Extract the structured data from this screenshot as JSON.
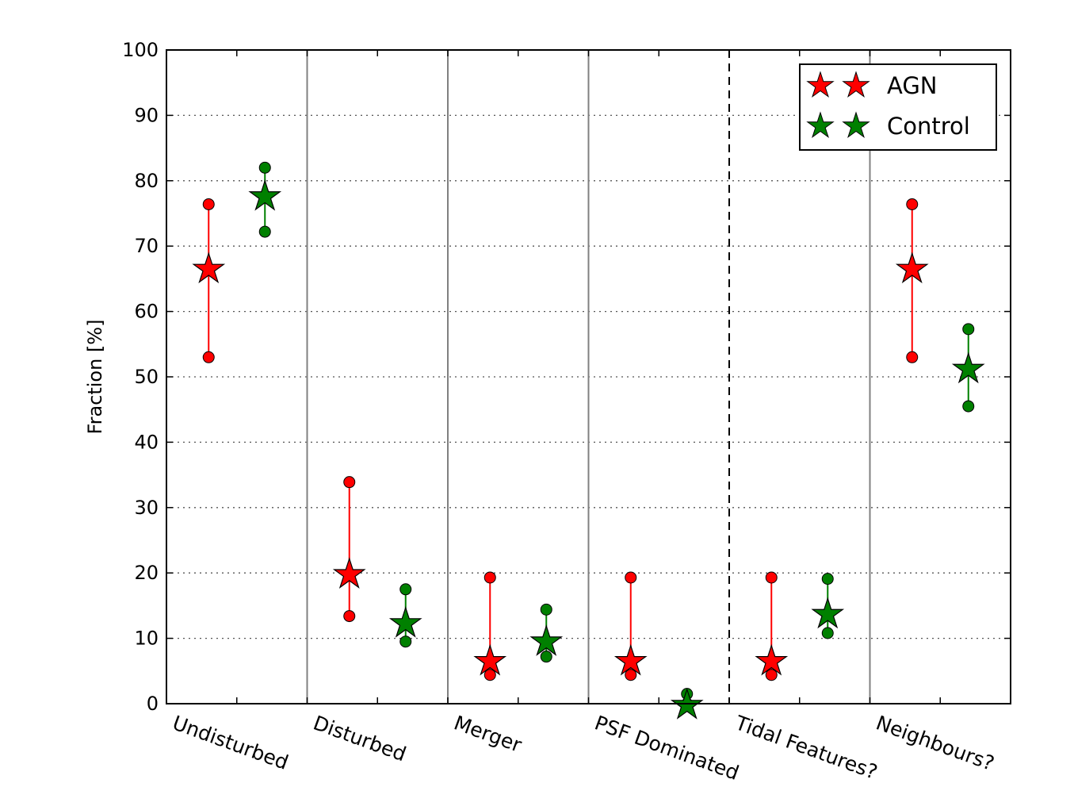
{
  "chart_data": {
    "type": "scatter",
    "title": "",
    "xlabel": "",
    "ylabel": "Fraction [%]",
    "ylim": [
      0,
      100
    ],
    "yticks": [
      0,
      10,
      20,
      30,
      40,
      50,
      60,
      70,
      80,
      90,
      100
    ],
    "grid": "horizontal dotted",
    "legend_position": "top-right",
    "categories": [
      "Undisturbed",
      "Disturbed",
      "Merger",
      "PSF Dominated",
      "Tidal Features?",
      "Neighbours?"
    ],
    "series": [
      {
        "name": "AGN",
        "color": "#ff0000",
        "values": [
          66.7,
          20.0,
          6.7,
          6.7,
          6.7,
          66.7
        ],
        "lower": [
          53.0,
          13.4,
          4.4,
          4.4,
          4.4,
          53.0
        ],
        "upper": [
          76.4,
          33.9,
          19.3,
          19.3,
          19.3,
          76.4
        ]
      },
      {
        "name": "Control",
        "color": "#008000",
        "values": [
          77.8,
          12.5,
          9.7,
          0.0,
          13.9,
          51.4
        ],
        "lower": [
          72.2,
          9.5,
          7.2,
          0.0,
          10.8,
          45.5
        ],
        "upper": [
          82.0,
          17.5,
          14.4,
          1.5,
          19.1,
          57.3
        ]
      }
    ]
  }
}
